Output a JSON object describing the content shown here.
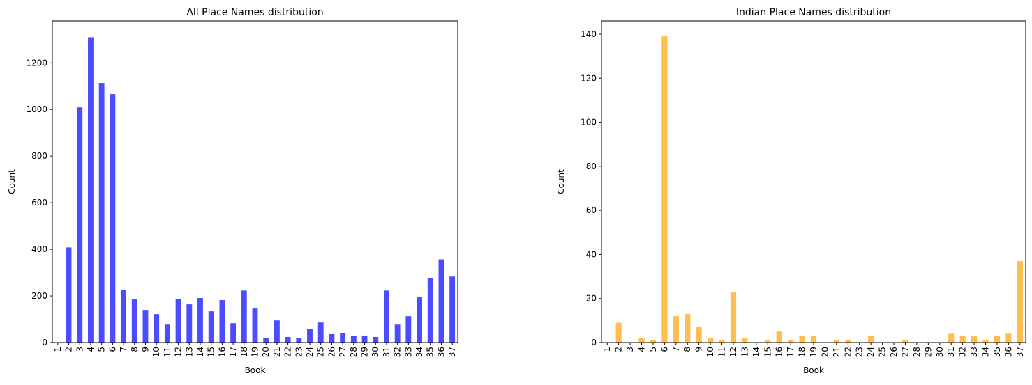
{
  "chart_data": [
    {
      "type": "bar",
      "title": "All Place Names distribution",
      "xlabel": "Book",
      "ylabel": "Count",
      "ylim": [
        0,
        1380
      ],
      "yticks": [
        0,
        200,
        400,
        600,
        800,
        1000,
        1200
      ],
      "grid": false,
      "color": "#4b4bff",
      "categories": [
        "1",
        "2",
        "3",
        "4",
        "5",
        "6",
        "7",
        "8",
        "9",
        "10",
        "11",
        "12",
        "13",
        "14",
        "15",
        "16",
        "17",
        "18",
        "19",
        "20",
        "21",
        "22",
        "23",
        "24",
        "25",
        "26",
        "27",
        "28",
        "29",
        "30",
        "31",
        "32",
        "33",
        "34",
        "35",
        "36",
        "37"
      ],
      "values": [
        0,
        408,
        1009,
        1310,
        1114,
        1066,
        226,
        185,
        140,
        122,
        77,
        188,
        164,
        191,
        134,
        182,
        83,
        223,
        146,
        21,
        95,
        24,
        18,
        57,
        86,
        36,
        39,
        27,
        30,
        24,
        223,
        77,
        113,
        194,
        277,
        357,
        283
      ]
    },
    {
      "type": "bar",
      "title": "Indian Place Names distribution",
      "xlabel": "Book",
      "ylabel": "Count",
      "ylim": [
        0,
        146
      ],
      "yticks": [
        0,
        20,
        40,
        60,
        80,
        100,
        120,
        140
      ],
      "grid": false,
      "color": "#ffbe4d",
      "categories": [
        "1",
        "2",
        "3",
        "4",
        "5",
        "6",
        "7",
        "8",
        "9",
        "10",
        "11",
        "12",
        "13",
        "14",
        "15",
        "16",
        "17",
        "18",
        "19",
        "20",
        "21",
        "22",
        "23",
        "24",
        "25",
        "26",
        "27",
        "28",
        "29",
        "30",
        "31",
        "32",
        "33",
        "34",
        "35",
        "36",
        "37"
      ],
      "values": [
        0,
        9,
        0,
        2,
        1,
        139,
        12,
        13,
        7,
        2,
        1,
        23,
        2,
        0,
        1,
        5,
        1,
        3,
        3,
        0,
        1,
        1,
        0,
        3,
        0,
        0,
        1,
        0,
        0,
        0,
        4,
        3,
        3,
        1,
        3,
        4,
        37
      ]
    }
  ]
}
